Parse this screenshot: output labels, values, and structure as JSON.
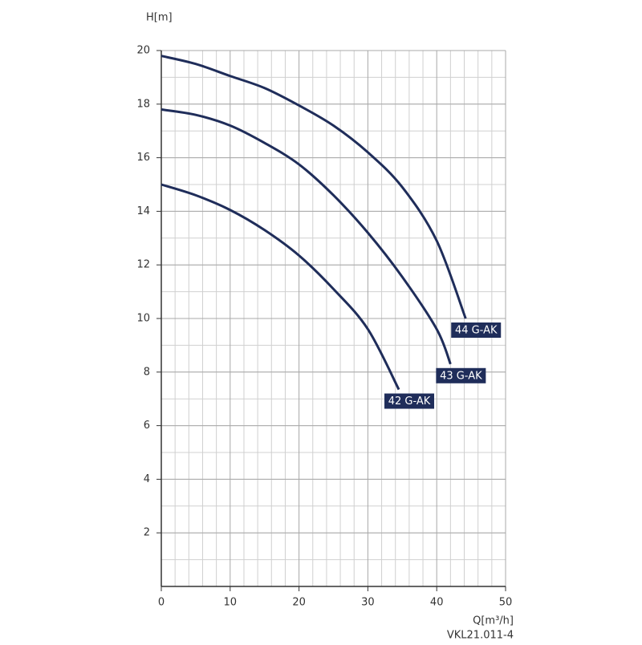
{
  "chart_data": {
    "type": "line",
    "y_label": "H[m]",
    "x_label": "Q[m³/h]",
    "footnote": "VKL21.011-4",
    "xlim": [
      0,
      50
    ],
    "xticks": [
      0,
      10,
      20,
      30,
      40,
      50
    ],
    "ylim": [
      0,
      20
    ],
    "yticks": [
      2,
      4,
      6,
      8,
      10,
      12,
      14,
      16,
      18,
      20
    ],
    "grid": true,
    "series": [
      {
        "name": "44 G-AK",
        "color": "#1f2d5a",
        "x": [
          0,
          5,
          10,
          15,
          20,
          25,
          30,
          35,
          40,
          44.2
        ],
        "values": [
          19.8,
          19.5,
          19.05,
          18.6,
          17.95,
          17.2,
          16.2,
          14.9,
          12.9,
          10.0
        ]
      },
      {
        "name": "43 G-AK",
        "color": "#1f2d5a",
        "x": [
          0,
          5,
          10,
          15,
          20,
          25,
          30,
          35,
          40,
          42
        ],
        "values": [
          17.8,
          17.6,
          17.2,
          16.55,
          15.75,
          14.6,
          13.2,
          11.55,
          9.6,
          8.3
        ]
      },
      {
        "name": "42 G-AK",
        "color": "#1f2d5a",
        "x": [
          0,
          5,
          10,
          15,
          20,
          25,
          30,
          34.5
        ],
        "values": [
          15,
          14.6,
          14.05,
          13.3,
          12.35,
          11.1,
          9.6,
          7.35
        ]
      }
    ]
  }
}
